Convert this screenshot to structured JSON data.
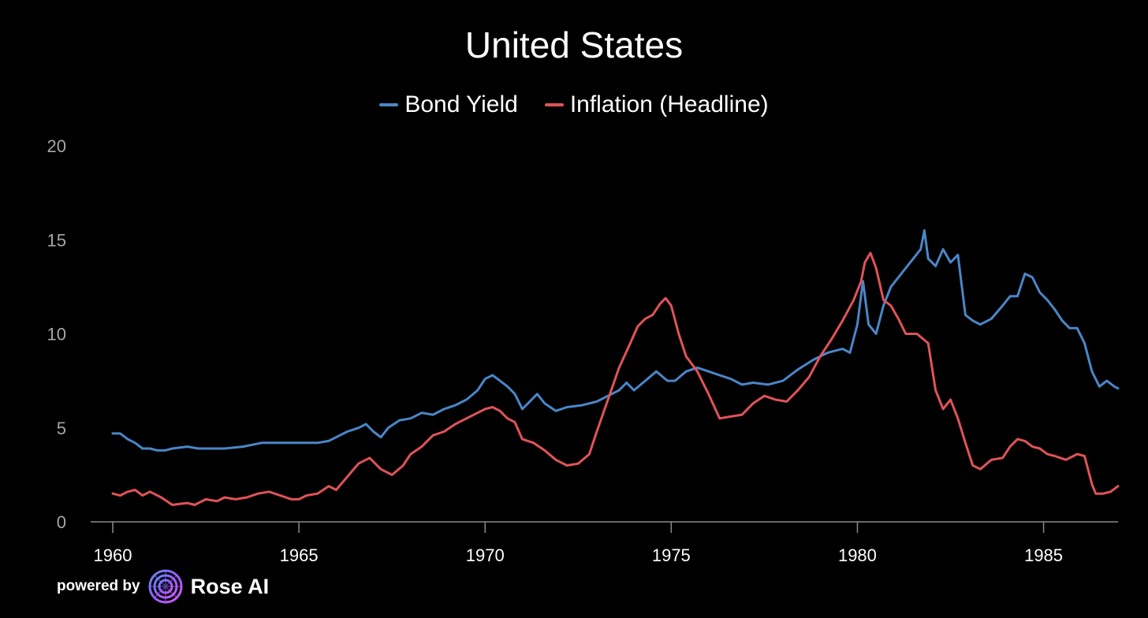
{
  "chart_data": {
    "type": "line",
    "title": "United States",
    "xlabel": "",
    "ylabel": "",
    "xlim": [
      1960,
      1987
    ],
    "ylim": [
      0,
      20
    ],
    "yticks": [
      "0",
      "5",
      "10",
      "15",
      "20"
    ],
    "xticks": [
      "1960",
      "1965",
      "1970",
      "1975",
      "1980",
      "1985"
    ],
    "legend_position": "top-center",
    "series": [
      {
        "name": "Bond Yield",
        "color": "#4a86c8",
        "x": [
          1960.0,
          1960.2,
          1960.4,
          1960.6,
          1960.8,
          1961.0,
          1961.2,
          1961.4,
          1961.6,
          1962.0,
          1962.3,
          1962.6,
          1963.0,
          1963.5,
          1964.0,
          1964.5,
          1965.0,
          1965.5,
          1965.8,
          1966.0,
          1966.3,
          1966.6,
          1966.8,
          1967.0,
          1967.2,
          1967.4,
          1967.7,
          1968.0,
          1968.3,
          1968.6,
          1968.9,
          1969.2,
          1969.5,
          1969.8,
          1970.0,
          1970.2,
          1970.4,
          1970.6,
          1970.8,
          1971.0,
          1971.2,
          1971.4,
          1971.6,
          1971.9,
          1972.2,
          1972.6,
          1973.0,
          1973.3,
          1973.6,
          1973.8,
          1974.0,
          1974.3,
          1974.6,
          1974.9,
          1975.1,
          1975.4,
          1975.7,
          1976.0,
          1976.3,
          1976.6,
          1976.9,
          1977.2,
          1977.6,
          1978.0,
          1978.4,
          1978.8,
          1979.2,
          1979.6,
          1979.8,
          1980.0,
          1980.15,
          1980.3,
          1980.5,
          1980.7,
          1980.9,
          1981.1,
          1981.3,
          1981.5,
          1981.7,
          1981.8,
          1981.9,
          1982.1,
          1982.3,
          1982.5,
          1982.7,
          1982.9,
          1983.1,
          1983.3,
          1983.6,
          1983.9,
          1984.1,
          1984.3,
          1984.5,
          1984.7,
          1984.9,
          1985.1,
          1985.3,
          1985.5,
          1985.7,
          1985.9,
          1986.1,
          1986.3,
          1986.5,
          1986.7,
          1986.9,
          1987.0
        ],
        "values": [
          4.7,
          4.7,
          4.4,
          4.2,
          3.9,
          3.9,
          3.8,
          3.8,
          3.9,
          4.0,
          3.9,
          3.9,
          3.9,
          4.0,
          4.2,
          4.2,
          4.2,
          4.2,
          4.3,
          4.5,
          4.8,
          5.0,
          5.2,
          4.8,
          4.5,
          5.0,
          5.4,
          5.5,
          5.8,
          5.7,
          6.0,
          6.2,
          6.5,
          7.0,
          7.6,
          7.8,
          7.5,
          7.2,
          6.8,
          6.0,
          6.4,
          6.8,
          6.3,
          5.9,
          6.1,
          6.2,
          6.4,
          6.7,
          7.0,
          7.4,
          7.0,
          7.5,
          8.0,
          7.5,
          7.5,
          8.0,
          8.2,
          8.0,
          7.8,
          7.6,
          7.3,
          7.4,
          7.3,
          7.5,
          8.1,
          8.6,
          9.0,
          9.2,
          9.0,
          10.5,
          12.8,
          10.5,
          10.0,
          11.5,
          12.5,
          13.0,
          13.5,
          14.0,
          14.5,
          15.5,
          14.0,
          13.6,
          14.5,
          13.8,
          14.2,
          11.0,
          10.7,
          10.5,
          10.8,
          11.5,
          12.0,
          12.0,
          13.2,
          13.0,
          12.2,
          11.8,
          11.3,
          10.7,
          10.3,
          10.3,
          9.5,
          8.0,
          7.2,
          7.5,
          7.2,
          7.1
        ]
      },
      {
        "name": "Inflation (Headline)",
        "color": "#e05358",
        "x": [
          1960.0,
          1960.2,
          1960.4,
          1960.6,
          1960.8,
          1961.0,
          1961.3,
          1961.6,
          1962.0,
          1962.2,
          1962.5,
          1962.8,
          1963.0,
          1963.3,
          1963.6,
          1963.9,
          1964.2,
          1964.5,
          1964.8,
          1965.0,
          1965.2,
          1965.5,
          1965.8,
          1966.0,
          1966.3,
          1966.6,
          1966.9,
          1967.2,
          1967.5,
          1967.8,
          1968.0,
          1968.3,
          1968.6,
          1968.9,
          1969.2,
          1969.5,
          1969.8,
          1970.0,
          1970.2,
          1970.4,
          1970.6,
          1970.8,
          1971.0,
          1971.3,
          1971.6,
          1971.9,
          1972.2,
          1972.5,
          1972.8,
          1973.0,
          1973.3,
          1973.6,
          1973.9,
          1974.1,
          1974.3,
          1974.5,
          1974.7,
          1974.85,
          1975.0,
          1975.2,
          1975.4,
          1975.7,
          1976.0,
          1976.3,
          1976.6,
          1976.9,
          1977.2,
          1977.5,
          1977.8,
          1978.1,
          1978.4,
          1978.7,
          1979.0,
          1979.3,
          1979.6,
          1979.9,
          1980.1,
          1980.2,
          1980.35,
          1980.5,
          1980.7,
          1980.9,
          1981.1,
          1981.3,
          1981.6,
          1981.9,
          1982.1,
          1982.3,
          1982.5,
          1982.7,
          1982.9,
          1983.1,
          1983.3,
          1983.6,
          1983.9,
          1984.1,
          1984.3,
          1984.5,
          1984.7,
          1984.9,
          1985.1,
          1985.3,
          1985.6,
          1985.9,
          1986.1,
          1986.3,
          1986.4,
          1986.6,
          1986.8,
          1987.0
        ],
        "values": [
          1.5,
          1.4,
          1.6,
          1.7,
          1.4,
          1.6,
          1.3,
          0.9,
          1.0,
          0.9,
          1.2,
          1.1,
          1.3,
          1.2,
          1.3,
          1.5,
          1.6,
          1.4,
          1.2,
          1.2,
          1.4,
          1.5,
          1.9,
          1.7,
          2.4,
          3.1,
          3.4,
          2.8,
          2.5,
          3.0,
          3.6,
          4.0,
          4.6,
          4.8,
          5.2,
          5.5,
          5.8,
          6.0,
          6.1,
          5.9,
          5.5,
          5.3,
          4.4,
          4.2,
          3.8,
          3.3,
          3.0,
          3.1,
          3.6,
          4.8,
          6.5,
          8.2,
          9.5,
          10.4,
          10.8,
          11.0,
          11.6,
          11.9,
          11.5,
          10.0,
          8.8,
          8.0,
          6.8,
          5.5,
          5.6,
          5.7,
          6.3,
          6.7,
          6.5,
          6.4,
          7.0,
          7.7,
          8.8,
          9.7,
          10.7,
          11.8,
          12.8,
          13.8,
          14.3,
          13.5,
          11.8,
          11.5,
          10.8,
          10.0,
          10.0,
          9.5,
          7.0,
          6.0,
          6.5,
          5.5,
          4.2,
          3.0,
          2.8,
          3.3,
          3.4,
          4.0,
          4.4,
          4.3,
          4.0,
          3.9,
          3.6,
          3.5,
          3.3,
          3.6,
          3.5,
          2.0,
          1.5,
          1.5,
          1.6,
          1.9
        ]
      }
    ]
  },
  "footer": {
    "powered_by": "powered by",
    "brand": "Rose AI"
  }
}
